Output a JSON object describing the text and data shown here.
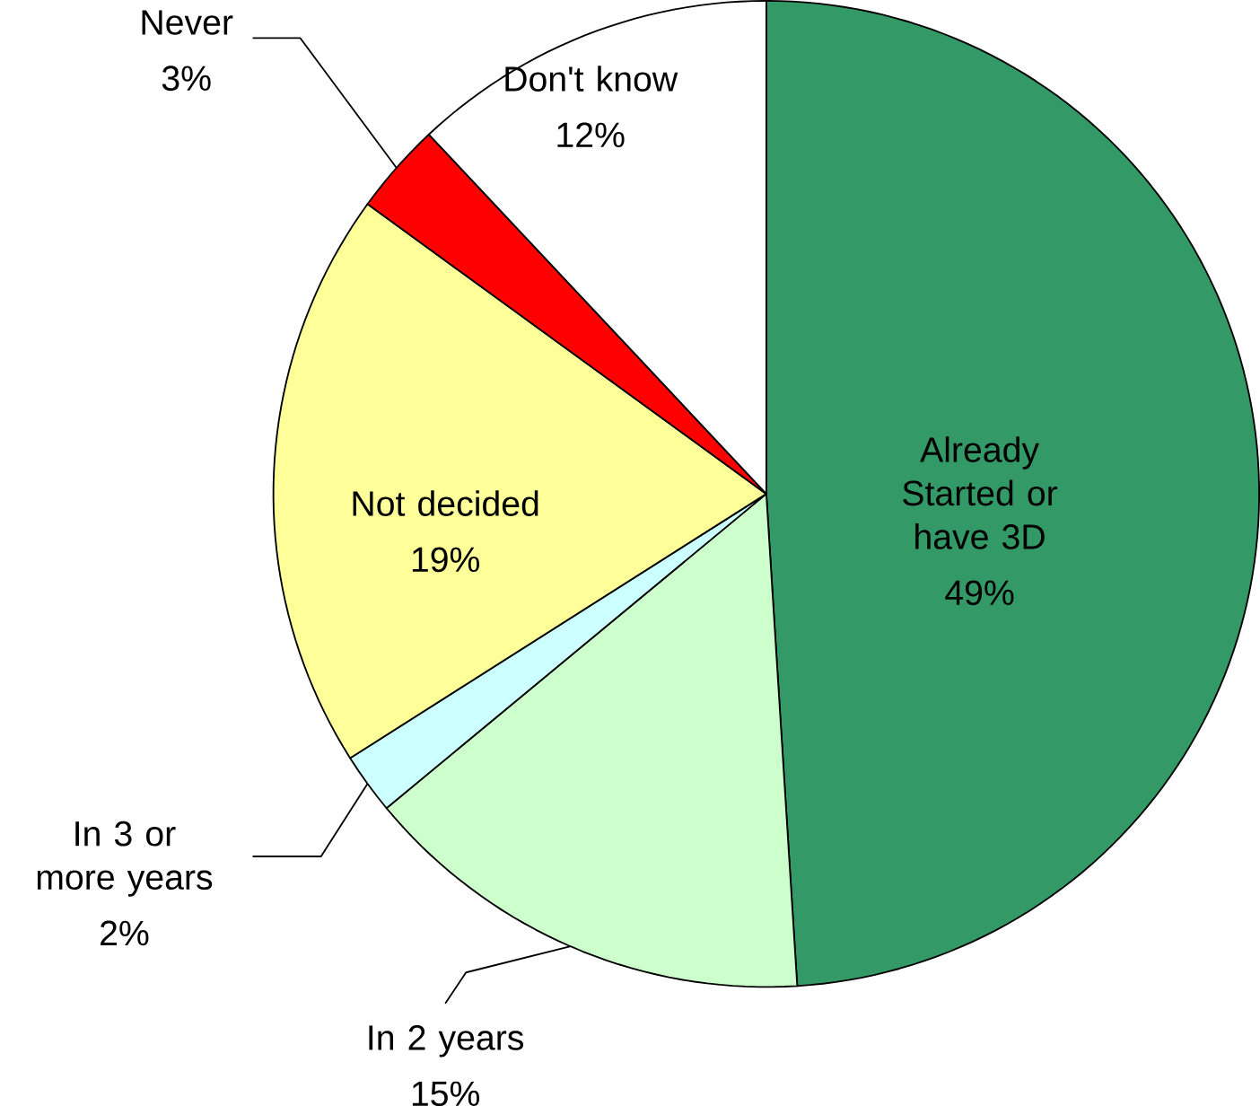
{
  "chart_data": {
    "type": "pie",
    "categories": [
      "Already Started or have 3D",
      "In 2 years",
      "In 3 or more years",
      "Not decided",
      "Never",
      "Don't know"
    ],
    "values": [
      49,
      15,
      2,
      19,
      3,
      12
    ],
    "value_labels": [
      "49%",
      "15%",
      "2%",
      "19%",
      "3%",
      "12%"
    ],
    "colors": [
      "#339966",
      "#ccffcc",
      "#ccffff",
      "#ffff99",
      "#ff0000",
      "#ffffff"
    ]
  }
}
